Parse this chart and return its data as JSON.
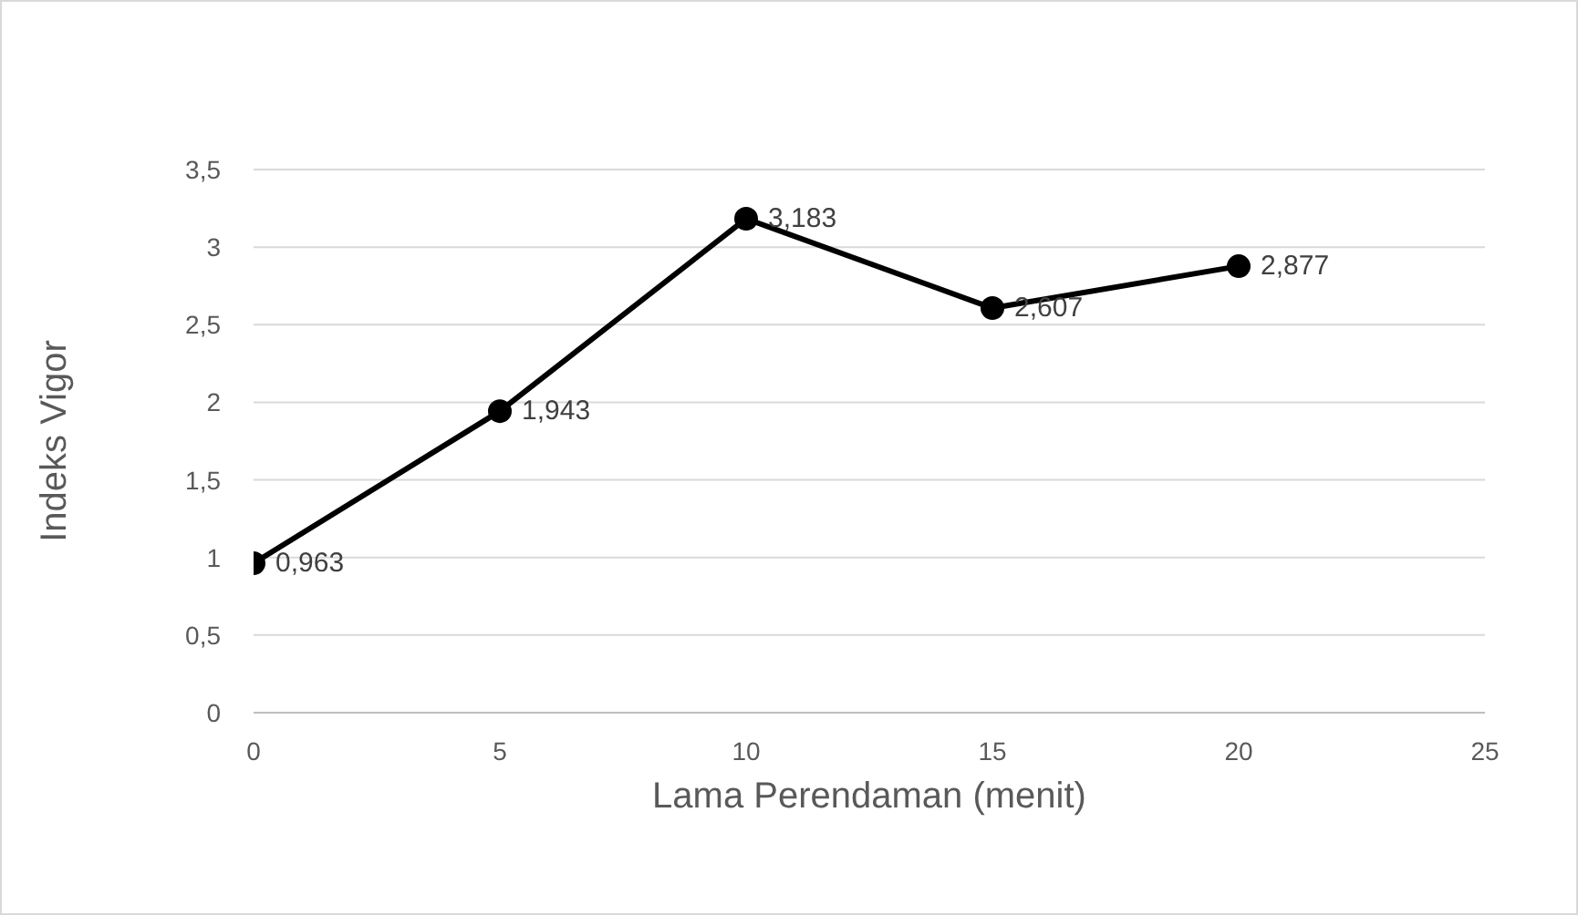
{
  "chart_data": {
    "type": "line",
    "xlabel": "Lama Perendaman (menit)",
    "ylabel": "Indeks Vigor",
    "x": [
      0,
      5,
      10,
      15,
      20
    ],
    "series": [
      {
        "color": "#000000",
        "values": [
          0.963,
          1.943,
          3.183,
          2.607,
          2.877
        ],
        "value_labels": [
          "0,963",
          "1,943",
          "3,183",
          "2,607",
          "2,877"
        ]
      }
    ],
    "xlim": [
      0,
      25
    ],
    "xticks": [
      0,
      5,
      10,
      15,
      20,
      25
    ],
    "ylim": [
      0,
      3.5
    ],
    "yticks": [
      0,
      {
        "value": 0.5,
        "label": "0,5"
      },
      1,
      {
        "value": 1.5,
        "label": "1,5"
      },
      2,
      {
        "value": 2.5,
        "label": "2,5"
      },
      3,
      {
        "value": 3.5,
        "label": "3,5"
      }
    ],
    "grid": "y",
    "marker": "circle",
    "line_style": "solid"
  }
}
